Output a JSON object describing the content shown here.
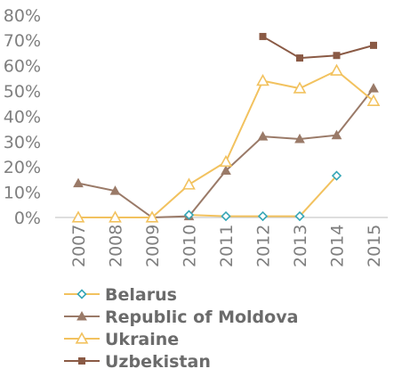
{
  "chart_data": {
    "type": "line",
    "x": [
      "2007",
      "2008",
      "2009",
      "2010",
      "2011",
      "2012",
      "2013",
      "2014",
      "2015"
    ],
    "ylim": [
      0,
      80
    ],
    "yticks": [
      0,
      10,
      20,
      30,
      40,
      50,
      60,
      70,
      80
    ],
    "ytick_labels": [
      "0%",
      "10%",
      "20%",
      "30%",
      "40%",
      "50%",
      "60%",
      "70%",
      "80%"
    ],
    "grid": false,
    "legend_position": "bottom-left",
    "series": [
      {
        "name": "Belarus",
        "marker": "diamond",
        "color": "#36a6b6",
        "line_color": "#f2c25f",
        "values": [
          null,
          null,
          null,
          1,
          0.5,
          0.5,
          0.5,
          16.5,
          null
        ]
      },
      {
        "name": "Republic of Moldova",
        "marker": "triangle",
        "color": "#9a7a68",
        "line_color": "#9a7a68",
        "values": [
          13.5,
          10.5,
          0,
          0.5,
          18.5,
          32,
          31,
          32.5,
          51
        ]
      },
      {
        "name": "Ukraine",
        "marker": "triangle-open",
        "color": "#f2c25f",
        "line_color": "#f2c25f",
        "values": [
          0,
          0,
          0,
          13,
          22,
          54,
          51,
          58,
          46
        ]
      },
      {
        "name": "Uzbekistan",
        "marker": "square",
        "color": "#8a5a45",
        "line_color": "#8a5a45",
        "values": [
          null,
          null,
          null,
          null,
          null,
          71.5,
          63,
          64,
          68
        ]
      }
    ]
  }
}
